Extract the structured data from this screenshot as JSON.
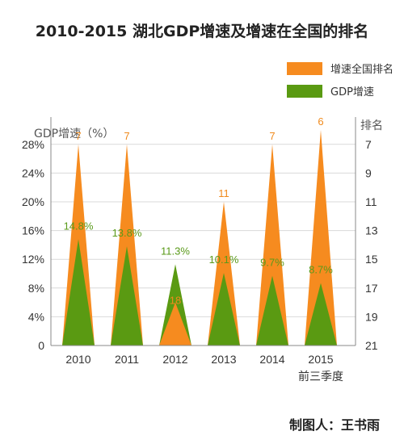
{
  "chart_data": {
    "type": "area",
    "title": "2010-2015 湖北GDP增速及增速在全国的排名",
    "categories": [
      "2010",
      "2011",
      "2012",
      "2013",
      "2014",
      "2015"
    ],
    "category_note": "前三季度",
    "y_left_label": "GDP增速（%）",
    "y_right_label": "排名",
    "y_left_ticks": [
      "0",
      "4%",
      "8%",
      "12%",
      "16%",
      "20%",
      "24%",
      "28%"
    ],
    "y_right_ticks": [
      "21",
      "19",
      "17",
      "15",
      "13",
      "11",
      "9",
      "7"
    ],
    "ylim": [
      0,
      0.3
    ],
    "series": [
      {
        "name": "增速全国排名",
        "color": "#f68b1f",
        "values": [
          7,
          7,
          18,
          11,
          7,
          6
        ],
        "labels": [
          "7",
          "7",
          "18",
          "11",
          "7",
          "6"
        ]
      },
      {
        "name": "GDP增速",
        "color": "#5a9a12",
        "values": [
          14.8,
          13.8,
          11.3,
          10.1,
          9.7,
          8.7
        ],
        "labels": [
          "14.8%",
          "13.8%",
          "11.3%",
          "10.1%",
          "9.7%",
          "8.7%"
        ]
      }
    ],
    "legend_position": "top-right",
    "grid": true
  },
  "credit": "制图人：王书雨"
}
